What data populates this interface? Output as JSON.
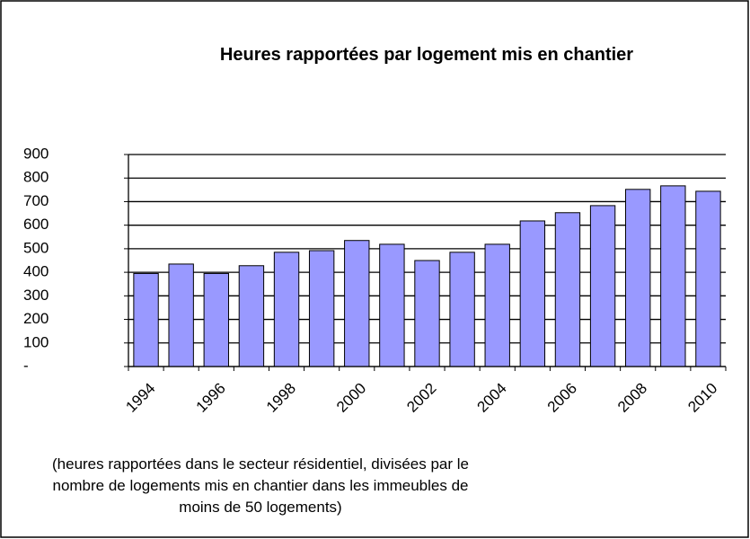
{
  "chart_data": {
    "type": "bar",
    "title": "Heures rapportées par logement mis en chantier",
    "categories": [
      "1994",
      null,
      "1996",
      null,
      "1998",
      null,
      "2000",
      null,
      "2002",
      null,
      "2004",
      null,
      "2006",
      null,
      "2008",
      null,
      "2010"
    ],
    "values": [
      395,
      435,
      395,
      428,
      485,
      492,
      535,
      519,
      450,
      485,
      519,
      618,
      653,
      683,
      752,
      767,
      744
    ],
    "color": "#9999ff",
    "ylim": [
      0,
      900
    ],
    "yticks": [
      {
        "value": 0,
        "label": "-"
      },
      100,
      200,
      300,
      400,
      500,
      600,
      700,
      800,
      900
    ],
    "grid": true,
    "note": [
      "(heures rapportées dans le secteur résidentiel, divisées par le",
      "nombre de logements mis en chantier dans les immeubles de",
      "moins de 50 logements)"
    ]
  }
}
